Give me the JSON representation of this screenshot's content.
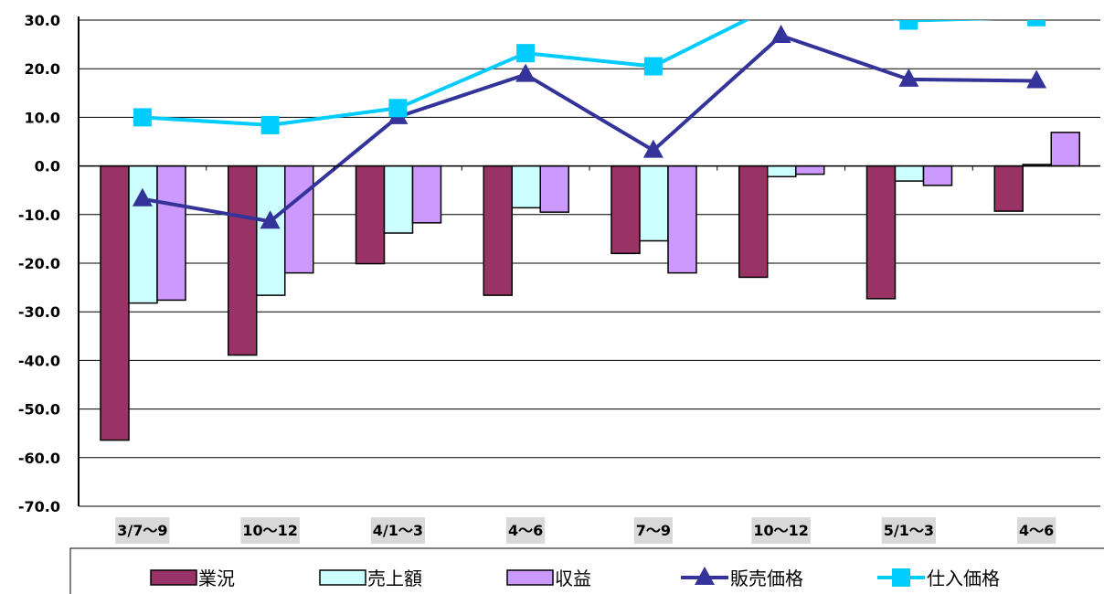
{
  "chart_data": {
    "type": "bar",
    "categories": [
      "3/7～9",
      "10～12",
      "4/1～3",
      "4～6",
      "7～9",
      "10～12",
      "5/1～3",
      "4～6"
    ],
    "ylim": [
      -70,
      30
    ],
    "yticks": [
      30,
      20,
      10,
      0,
      -10,
      -20,
      -30,
      -40,
      -50,
      -60,
      -70
    ],
    "ytick_labels": [
      "30.0",
      "20.0",
      "10.0",
      "0.0",
      "-10.0",
      "-20.0",
      "-30.0",
      "-40.0",
      "-50.0",
      "-60.0",
      "-70.0"
    ],
    "grid": true,
    "legend_position": "bottom",
    "bar_series": [
      {
        "name": "業況",
        "color": "#993366",
        "values": [
          -56.4,
          -38.9,
          -20.1,
          -26.6,
          -18.0,
          -22.9,
          -27.3,
          -9.3
        ]
      },
      {
        "name": "売上額",
        "color": "#ccffff",
        "values": [
          -28.2,
          -26.6,
          -13.8,
          -8.6,
          -15.4,
          -2.2,
          -3.1,
          0.3
        ]
      },
      {
        "name": "収益",
        "color": "#cc99ff",
        "values": [
          -27.6,
          -22.0,
          -11.7,
          -9.5,
          -22.0,
          -1.7,
          -4.0,
          6.9
        ]
      }
    ],
    "line_series": [
      {
        "name": "販売価格",
        "color": "#333399",
        "marker": "triangle",
        "values": [
          -6.8,
          -11.4,
          10.1,
          18.8,
          3.2,
          26.8,
          17.8,
          17.5
        ]
      },
      {
        "name": "仕入価格",
        "color": "#00ccff",
        "marker": "square",
        "values": [
          10.0,
          8.4,
          11.9,
          23.2,
          20.5,
          33.6,
          29.9,
          30.6
        ]
      }
    ]
  }
}
